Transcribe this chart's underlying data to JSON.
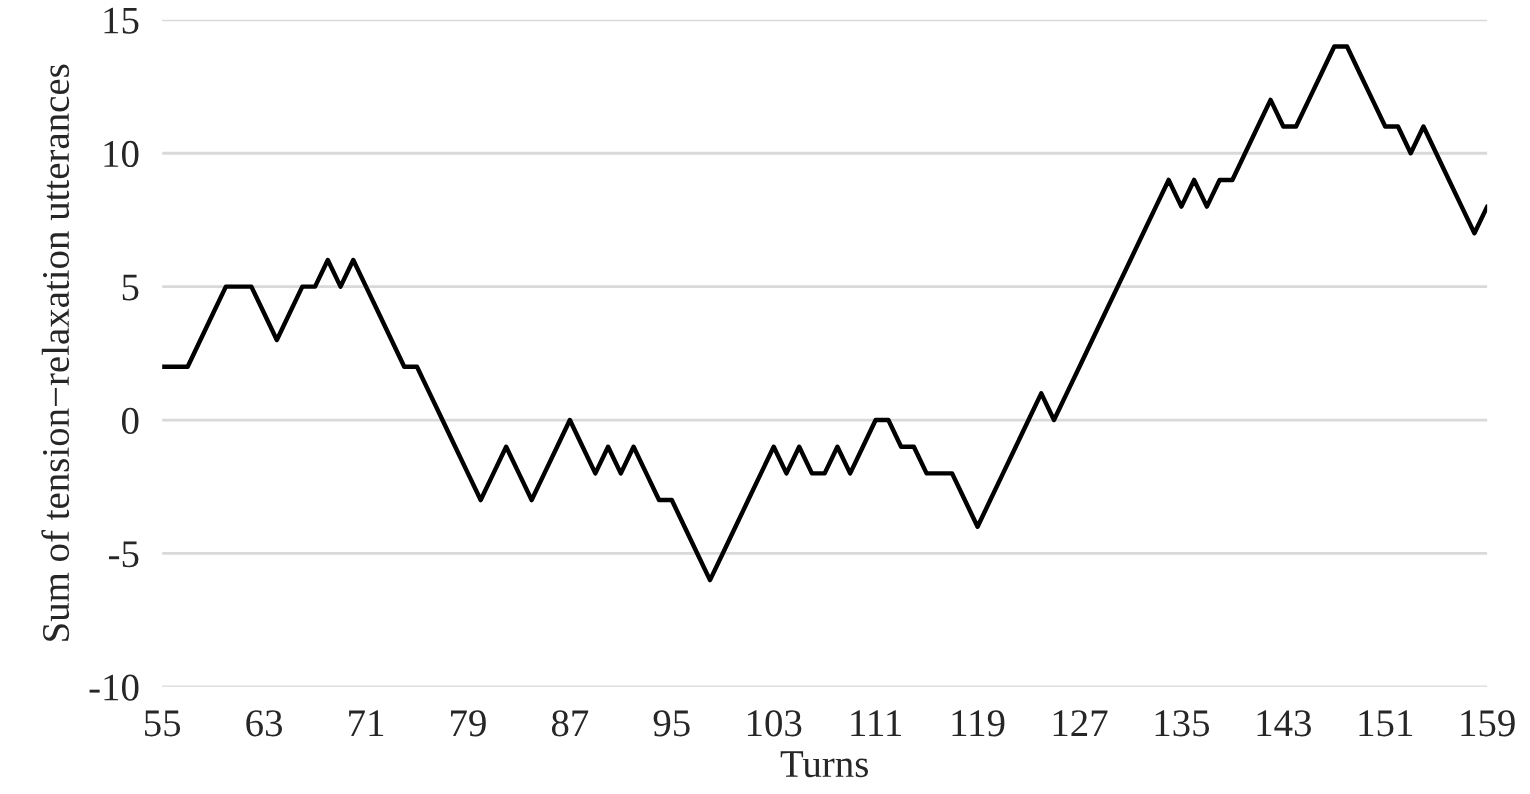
{
  "chart_data": {
    "type": "line",
    "xlabel": "Turns",
    "ylabel": "Sum of tension−relaxation utterances",
    "x": [
      55,
      56,
      57,
      58,
      59,
      60,
      61,
      62,
      63,
      64,
      65,
      66,
      67,
      68,
      69,
      70,
      71,
      72,
      73,
      74,
      75,
      76,
      77,
      78,
      79,
      80,
      81,
      82,
      83,
      84,
      85,
      86,
      87,
      88,
      89,
      90,
      91,
      92,
      93,
      94,
      95,
      96,
      97,
      98,
      99,
      100,
      101,
      102,
      103,
      104,
      105,
      106,
      107,
      108,
      109,
      110,
      111,
      112,
      113,
      114,
      115,
      116,
      117,
      118,
      119,
      120,
      121,
      122,
      123,
      124,
      125,
      126,
      127,
      128,
      129,
      130,
      131,
      132,
      133,
      134,
      135,
      136,
      137,
      138,
      139,
      140,
      141,
      142,
      143,
      144,
      145,
      146,
      147,
      148,
      149,
      150,
      151,
      152,
      153,
      154,
      155,
      156,
      157,
      158,
      159
    ],
    "series": [
      {
        "color": "#000000",
        "values": [
          2,
          2,
          2,
          3,
          4,
          5,
          5,
          5,
          4,
          3,
          4,
          5,
          5,
          6,
          5,
          6,
          5,
          4,
          3,
          2,
          2,
          1,
          0,
          -1,
          -2,
          -3,
          -2,
          -1,
          -2,
          -3,
          -2,
          -1,
          0,
          -1,
          -2,
          -1,
          -2,
          -1,
          -2,
          -3,
          -3,
          -4,
          -5,
          -6,
          -5,
          -4,
          -3,
          -2,
          -1,
          -2,
          -1,
          -2,
          -2,
          -1,
          -2,
          -1,
          0,
          0,
          -1,
          -1,
          -2,
          -2,
          -2,
          -3,
          -4,
          -3,
          -2,
          -1,
          0,
          1,
          0,
          1,
          2,
          3,
          4,
          5,
          6,
          7,
          8,
          9,
          8,
          9,
          8,
          9,
          9,
          10,
          11,
          12,
          11,
          11,
          12,
          13,
          14,
          14,
          13,
          12,
          11,
          11,
          10,
          11,
          10,
          9,
          8,
          7,
          8
        ]
      }
    ],
    "xlim": [
      55,
      159
    ],
    "xticks": [
      55,
      63,
      71,
      79,
      87,
      95,
      103,
      111,
      119,
      127,
      135,
      143,
      151,
      159
    ],
    "ylim": [
      -10,
      15
    ],
    "yticks": [
      -10,
      -5,
      0,
      5,
      10,
      15
    ],
    "grid": "y",
    "marker": "none",
    "line_style": "solid"
  }
}
